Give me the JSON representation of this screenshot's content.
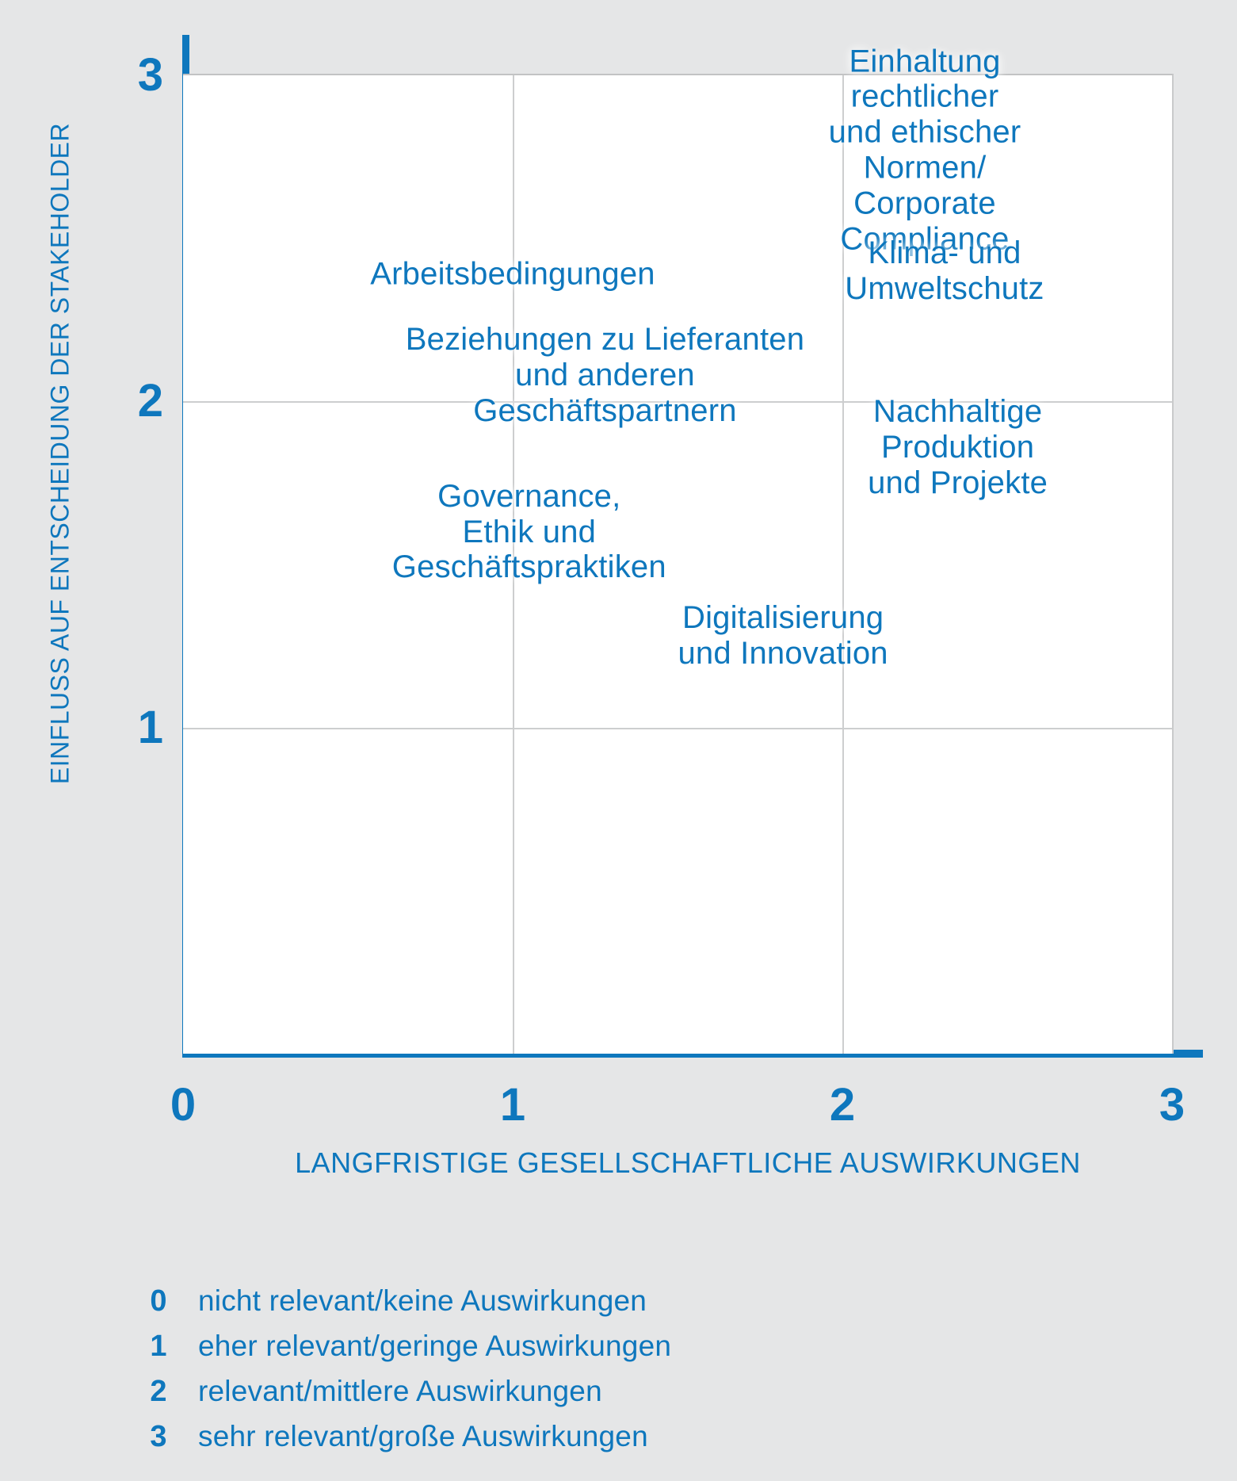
{
  "colors": {
    "accent": "#0e77bd",
    "background": "#e5e6e7",
    "plot_background": "#ffffff",
    "gridline": "#cdcecf"
  },
  "chart_data": {
    "type": "scatter",
    "title": "",
    "xlabel": "LANGFRISTIGE GESELLSCHAFTLICHE AUSWIRKUNGEN",
    "ylabel": "EINFLUSS AUF ENTSCHEIDUNG DER STAKEHOLDER",
    "xlim": [
      0,
      3
    ],
    "ylim": [
      0,
      3
    ],
    "grid": true,
    "x_ticks": [
      0,
      1,
      2,
      3
    ],
    "y_ticks": [
      1,
      2,
      3
    ],
    "grid_values": [
      1,
      2
    ],
    "points": [
      {
        "label": "Einhaltung rechtlicher und ethischer Normen/Corporate Compliance",
        "lines": [
          "Einhaltung rechtlicher",
          "und ethischer Normen/",
          "Corporate Compliance"
        ],
        "x": 2.25,
        "y": 2.77
      },
      {
        "label": "Klima- und Umweltschutz",
        "lines": [
          "Klima- und",
          "Umweltschutz"
        ],
        "x": 2.31,
        "y": 2.4
      },
      {
        "label": "Arbeitsbedingungen",
        "lines": [
          "Arbeitsbedingungen"
        ],
        "x": 1.0,
        "y": 2.39
      },
      {
        "label": "Beziehungen zu Lieferanten und anderen Geschäftspartnern",
        "lines": [
          "Beziehungen zu Lieferanten",
          "und anderen",
          "Geschäftspartnern"
        ],
        "x": 1.28,
        "y": 2.08
      },
      {
        "label": "Nachhaltige Produktion und Projekte",
        "lines": [
          "Nachhaltige Produktion",
          "und Projekte"
        ],
        "x": 2.35,
        "y": 1.86
      },
      {
        "label": "Governance, Ethik und Geschäftspraktiken",
        "lines": [
          "Governance,",
          "Ethik und",
          "Geschäftspraktiken"
        ],
        "x": 1.05,
        "y": 1.6
      },
      {
        "label": "Digitalisierung und Innovation",
        "lines": [
          "Digitalisierung",
          "und Innovation"
        ],
        "x": 1.82,
        "y": 1.28
      }
    ]
  },
  "legend": {
    "rows": [
      {
        "value": "0",
        "label": "nicht relevant/keine Auswirkungen"
      },
      {
        "value": "1",
        "label": "eher relevant/geringe Auswirkungen"
      },
      {
        "value": "2",
        "label": "relevant/mittlere Auswirkungen"
      },
      {
        "value": "3",
        "label": "sehr relevant/große Auswirkungen"
      }
    ]
  }
}
